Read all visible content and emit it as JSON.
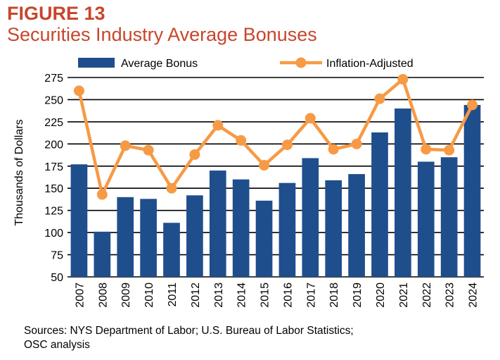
{
  "figure": {
    "label": "FIGURE 13",
    "title": "Securities Industry Average Bonuses"
  },
  "sources": {
    "line1": "Sources: NYS Department of Labor; U.S. Bureau of Labor Statistics;",
    "line2": "OSC analysis"
  },
  "colors": {
    "bar": "#1f4e8c",
    "line": "#f79a45",
    "title": "#c8462c",
    "grid": "#000000"
  },
  "chart_data": {
    "type": "bar",
    "title": "Securities Industry Average Bonuses",
    "xlabel": "",
    "ylabel": "Thousands of Dollars",
    "ylim": [
      50,
      275
    ],
    "yticks": [
      50,
      75,
      100,
      125,
      150,
      175,
      200,
      225,
      250,
      275
    ],
    "grid": true,
    "legend": "top",
    "categories": [
      "2007",
      "2008",
      "2009",
      "2010",
      "2011",
      "2012",
      "2013",
      "2014",
      "2015",
      "2016",
      "2017",
      "2018",
      "2019",
      "2020",
      "2021",
      "2022",
      "2023",
      "2024"
    ],
    "series": [
      {
        "name": "Average Bonus",
        "type": "bar",
        "values": [
          177,
          101,
          140,
          138,
          111,
          142,
          170,
          160,
          136,
          156,
          184,
          159,
          166,
          213,
          240,
          180,
          185,
          244
        ]
      },
      {
        "name": "Inflation-Adjusted",
        "type": "line",
        "values": [
          260,
          143,
          198,
          193,
          150,
          188,
          221,
          204,
          176,
          199,
          229,
          194,
          200,
          251,
          273,
          194,
          193,
          244
        ]
      }
    ]
  }
}
